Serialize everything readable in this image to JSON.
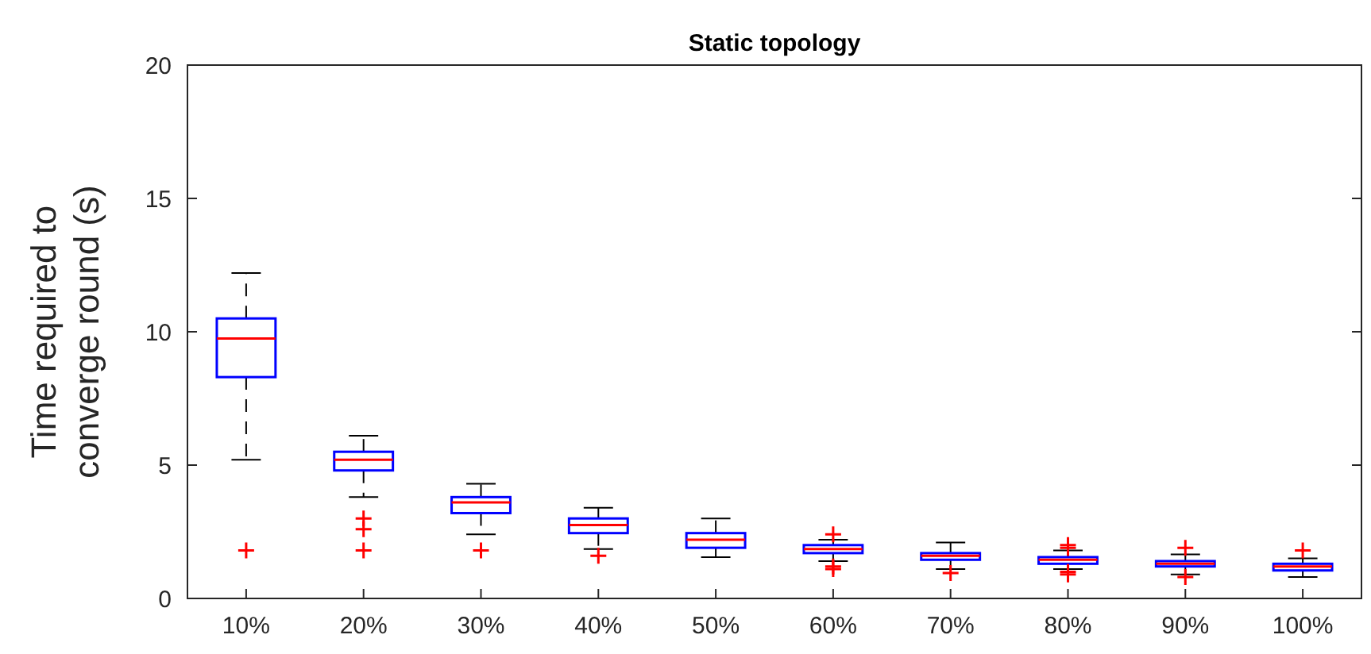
{
  "chart_data": {
    "type": "box",
    "title": "Static topology",
    "ylabel": "Time required to\nconverge round (s)",
    "categories": [
      "10%",
      "20%",
      "30%",
      "40%",
      "50%",
      "60%",
      "70%",
      "80%",
      "90%",
      "100%"
    ],
    "boxes": [
      {
        "low": 5.2,
        "q1": 8.3,
        "median": 9.75,
        "q3": 10.5,
        "high": 12.2,
        "outliers": [
          1.8
        ]
      },
      {
        "low": 3.8,
        "q1": 4.8,
        "median": 5.2,
        "q3": 5.5,
        "high": 6.1,
        "outliers": [
          3.0,
          2.6,
          1.8
        ]
      },
      {
        "low": 2.4,
        "q1": 3.2,
        "median": 3.6,
        "q3": 3.8,
        "high": 4.3,
        "outliers": [
          1.8
        ]
      },
      {
        "low": 1.85,
        "q1": 2.45,
        "median": 2.75,
        "q3": 3.0,
        "high": 3.4,
        "outliers": [
          1.6
        ]
      },
      {
        "low": 1.55,
        "q1": 1.9,
        "median": 2.2,
        "q3": 2.45,
        "high": 3.0
      },
      {
        "low": 1.4,
        "q1": 1.7,
        "median": 1.85,
        "q3": 2.0,
        "high": 2.2,
        "outliers": [
          2.4,
          1.2,
          1.1
        ]
      },
      {
        "low": 1.1,
        "q1": 1.45,
        "median": 1.6,
        "q3": 1.7,
        "high": 2.1,
        "outliers": [
          0.95
        ]
      },
      {
        "low": 1.1,
        "q1": 1.3,
        "median": 1.45,
        "q3": 1.55,
        "high": 1.8,
        "outliers": [
          2.0,
          1.9,
          1.0,
          0.9
        ]
      },
      {
        "low": 0.9,
        "q1": 1.2,
        "median": 1.3,
        "q3": 1.4,
        "high": 1.65,
        "outliers": [
          1.9,
          0.8
        ]
      },
      {
        "low": 0.8,
        "q1": 1.05,
        "median": 1.2,
        "q3": 1.3,
        "high": 1.5,
        "outliers": [
          1.8
        ]
      }
    ],
    "ylim": [
      0,
      20
    ],
    "yticks": [
      0,
      5,
      10,
      15,
      20
    ],
    "marker": "cross",
    "grid": false
  }
}
